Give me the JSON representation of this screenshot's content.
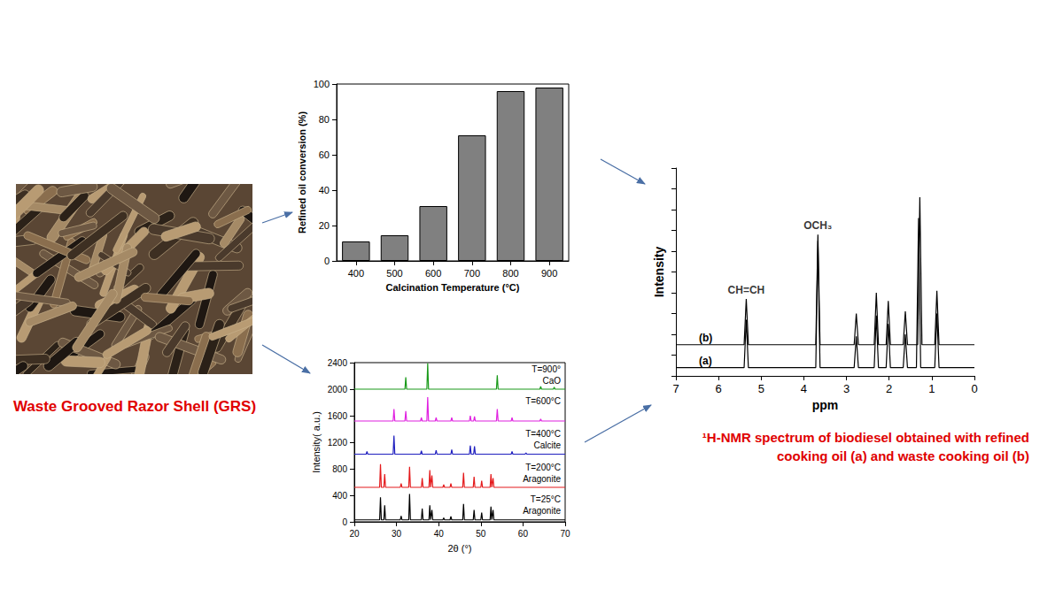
{
  "photo": {
    "caption": "Waste Grooved Razor Shell (GRS)"
  },
  "chart_data": [
    {
      "type": "bar",
      "categories": [
        "400",
        "500",
        "600",
        "700",
        "800",
        "900"
      ],
      "values": [
        11,
        14.5,
        31,
        71,
        96,
        98
      ],
      "color": "#808080",
      "xlabel": "Calcination Temperature (°C)",
      "ylabel": "Refined oil conversion (%)",
      "ylim": [
        0,
        100
      ],
      "yticks": [
        0,
        20,
        40,
        60,
        80,
        100
      ],
      "grid": false
    },
    {
      "type": "line",
      "xlabel": "2θ (°)",
      "ylabel": "Intensity( a.u.)",
      "xlim": [
        20,
        70
      ],
      "xticks": [
        20,
        30,
        40,
        50,
        60,
        70
      ],
      "ylim": [
        0,
        2400
      ],
      "yticks": [
        0,
        400,
        800,
        1200,
        1600,
        2000,
        2400
      ],
      "grid": false,
      "series": [
        {
          "name": "T=25°C",
          "phase": "Aragonite",
          "color": "#000000",
          "x": [
            20,
            26.0,
            26.2,
            26.4,
            27.0,
            27.2,
            27.4,
            30.9,
            31.1,
            31.3,
            32.9,
            33.1,
            33.3,
            35.9,
            36.1,
            36.3,
            37.7,
            37.9,
            38.1,
            38.2,
            38.4,
            38.6,
            41.0,
            41.2,
            41.4,
            42.7,
            42.9,
            43.1,
            45.7,
            45.9,
            46.1,
            48.2,
            48.4,
            48.6,
            50.0,
            50.2,
            50.4,
            52.2,
            52.4,
            52.6,
            52.7,
            52.9,
            53.1,
            70
          ],
          "values": [
            30,
            30,
            370,
            30,
            30,
            250,
            30,
            30,
            90,
            30,
            30,
            420,
            30,
            30,
            200,
            30,
            30,
            250,
            30,
            30,
            180,
            30,
            30,
            60,
            30,
            30,
            80,
            30,
            30,
            270,
            30,
            30,
            180,
            30,
            30,
            140,
            30,
            30,
            230,
            30,
            30,
            180,
            30,
            30
          ]
        },
        {
          "name": "T=200°C",
          "phase": "Aragonite",
          "color": "#e41a1c",
          "x": [
            20,
            26.0,
            26.2,
            26.4,
            27.0,
            27.2,
            27.4,
            30.9,
            31.1,
            31.3,
            32.9,
            33.1,
            33.3,
            35.9,
            36.1,
            36.3,
            37.7,
            37.9,
            38.1,
            38.2,
            38.4,
            38.6,
            41.0,
            41.2,
            41.4,
            42.7,
            42.9,
            43.1,
            45.7,
            45.9,
            46.1,
            48.2,
            48.4,
            48.6,
            50.0,
            50.2,
            50.4,
            52.2,
            52.4,
            52.6,
            52.7,
            52.9,
            53.1,
            70
          ],
          "values": [
            520,
            520,
            870,
            520,
            520,
            720,
            520,
            520,
            580,
            520,
            520,
            830,
            520,
            520,
            660,
            520,
            520,
            780,
            520,
            520,
            700,
            520,
            520,
            560,
            520,
            520,
            580,
            520,
            520,
            740,
            520,
            520,
            680,
            520,
            520,
            620,
            520,
            520,
            720,
            520,
            520,
            660,
            520,
            520
          ]
        },
        {
          "name": "T=400°C",
          "phase": "Calcite",
          "color": "#1f1fbf",
          "x": [
            20,
            22.8,
            23.0,
            23.2,
            29.2,
            29.4,
            29.6,
            35.7,
            35.9,
            36.1,
            39.2,
            39.4,
            39.6,
            42.9,
            43.1,
            43.3,
            47.3,
            47.5,
            47.7,
            48.3,
            48.5,
            48.7,
            57.2,
            57.4,
            57.6,
            60.5,
            60.7,
            60.9,
            70
          ],
          "values": [
            1020,
            1020,
            1060,
            1020,
            1020,
            1300,
            1020,
            1020,
            1070,
            1020,
            1020,
            1080,
            1020,
            1020,
            1090,
            1020,
            1020,
            1150,
            1020,
            1020,
            1140,
            1020,
            1020,
            1060,
            1020,
            1020,
            1040,
            1020,
            1020
          ]
        },
        {
          "name": "T=600°C",
          "color": "#e020e0",
          "x": [
            20,
            29.2,
            29.4,
            29.6,
            32.0,
            32.2,
            32.4,
            35.7,
            35.9,
            36.1,
            37.2,
            37.4,
            37.6,
            39.2,
            39.4,
            39.6,
            42.9,
            43.1,
            43.3,
            47.3,
            47.5,
            47.7,
            48.3,
            48.5,
            48.7,
            53.7,
            53.9,
            54.1,
            57.2,
            57.4,
            57.6,
            64.0,
            64.2,
            64.4,
            70
          ],
          "values": [
            1520,
            1520,
            1700,
            1520,
            1520,
            1670,
            1520,
            1520,
            1570,
            1520,
            1520,
            1880,
            1520,
            1520,
            1570,
            1520,
            1520,
            1570,
            1520,
            1520,
            1600,
            1520,
            1520,
            1590,
            1520,
            1520,
            1700,
            1520,
            1520,
            1570,
            1520,
            1520,
            1550,
            1520,
            1520
          ]
        },
        {
          "name": "T=900°",
          "phase": "CaO",
          "color": "#1a9a1a",
          "x": [
            20,
            32.0,
            32.2,
            32.4,
            37.2,
            37.4,
            37.6,
            53.7,
            53.9,
            54.1,
            64.0,
            64.2,
            64.4,
            67.2,
            67.4,
            67.6,
            70
          ],
          "values": [
            2000,
            2000,
            2180,
            2000,
            2000,
            2390,
            2000,
            2000,
            2210,
            2000,
            2000,
            2040,
            2000,
            2000,
            2030,
            2000,
            2000
          ]
        }
      ]
    },
    {
      "type": "line",
      "xlabel": "ppm",
      "ylabel": "Intensity",
      "xlim": [
        7,
        0
      ],
      "xticks": [
        7,
        6,
        5,
        4,
        3,
        2,
        1,
        0
      ],
      "ylim": [
        0,
        100
      ],
      "yticks": [
        0,
        10,
        20,
        30,
        40,
        50,
        60,
        70,
        80,
        90,
        100
      ],
      "tick_labels": "x",
      "grid": false,
      "series": [
        {
          "name": "(a)",
          "color": "#000000",
          "x": [
            7,
            5.4,
            5.35,
            5.3,
            3.72,
            3.67,
            3.62,
            2.82,
            2.77,
            2.72,
            2.35,
            2.3,
            2.25,
            2.07,
            2.02,
            1.97,
            1.67,
            1.62,
            1.57,
            1.36,
            1.31,
            1.26,
            0.93,
            0.88,
            0.83,
            0
          ],
          "values": [
            4,
            4,
            27,
            4,
            4,
            65,
            4,
            4,
            19,
            4,
            4,
            29,
            4,
            4,
            25,
            4,
            4,
            20,
            4,
            4,
            76,
            4,
            4,
            30,
            4,
            4
          ]
        },
        {
          "name": "(b)",
          "color": "#000000",
          "x": [
            7,
            5.4,
            5.35,
            5.3,
            3.72,
            3.67,
            3.62,
            2.82,
            2.77,
            2.72,
            2.35,
            2.3,
            2.25,
            2.07,
            2.02,
            1.97,
            1.67,
            1.62,
            1.57,
            1.33,
            1.28,
            1.23,
            0.93,
            0.88,
            0.83,
            0
          ],
          "values": [
            15,
            15,
            37,
            15,
            15,
            68,
            15,
            15,
            30,
            15,
            15,
            40,
            15,
            15,
            36,
            15,
            15,
            31,
            15,
            15,
            86,
            15,
            15,
            41,
            15,
            15
          ]
        }
      ],
      "annotations": [
        {
          "text": "CH=CH",
          "x": 5.35,
          "y": 38
        },
        {
          "text": "OCH₃",
          "x": 3.67,
          "y": 69
        }
      ],
      "caption": "¹H-NMR spectrum of biodiesel obtained with refined cooking oil (a) and waste cooking oil (b)"
    }
  ]
}
